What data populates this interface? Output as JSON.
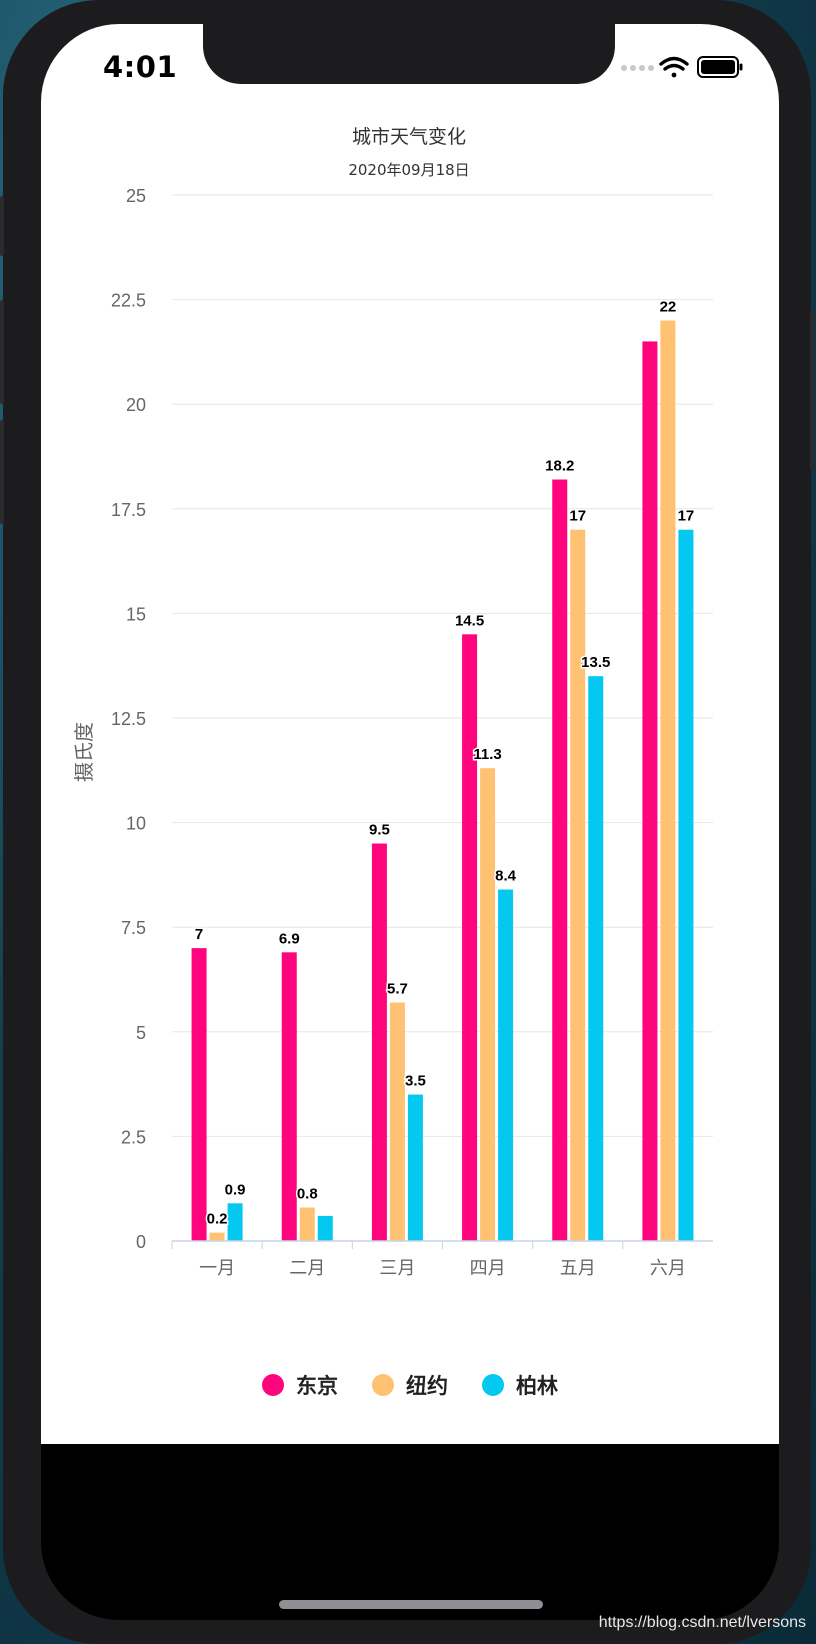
{
  "status_bar": {
    "time": "4:01"
  },
  "colors": {
    "tokyo": "#ff057d",
    "newyork": "#ffc172",
    "berlin": "#05c8f0"
  },
  "watermark": "https://blog.csdn.net/lversons",
  "chart_data": {
    "type": "bar",
    "title": "城市天气变化",
    "subtitle": "2020年09月18日",
    "xlabel": "",
    "ylabel": "摄氏度",
    "ylim": [
      0,
      25
    ],
    "yticks": [
      "0",
      "2.5",
      "5",
      "7.5",
      "10",
      "12.5",
      "15",
      "17.5",
      "20",
      "22.5",
      "25"
    ],
    "ytick_values": [
      0,
      2.5,
      5,
      7.5,
      10,
      12.5,
      15,
      17.5,
      20,
      22.5,
      25
    ],
    "grid": true,
    "legend_position": "bottom",
    "categories": [
      "一月",
      "二月",
      "三月",
      "四月",
      "五月",
      "六月"
    ],
    "series": [
      {
        "name": "东京",
        "color": "#ff057d",
        "values": [
          7,
          6.9,
          9.5,
          14.5,
          18.2,
          21.5
        ],
        "labels": [
          "7",
          "6.9",
          "9.5",
          "14.5",
          "18.2",
          ""
        ]
      },
      {
        "name": "纽约",
        "color": "#ffc172",
        "values": [
          0.2,
          0.8,
          5.7,
          11.3,
          17,
          22
        ],
        "labels": [
          "0.2",
          "0.8",
          "5.7",
          "11.3",
          "17",
          "22"
        ]
      },
      {
        "name": "柏林",
        "color": "#05c8f0",
        "values": [
          0.9,
          0.6,
          3.5,
          8.4,
          13.5,
          17
        ],
        "labels": [
          "0.9",
          "",
          "3.5",
          "8.4",
          "13.5",
          "17"
        ]
      }
    ]
  }
}
